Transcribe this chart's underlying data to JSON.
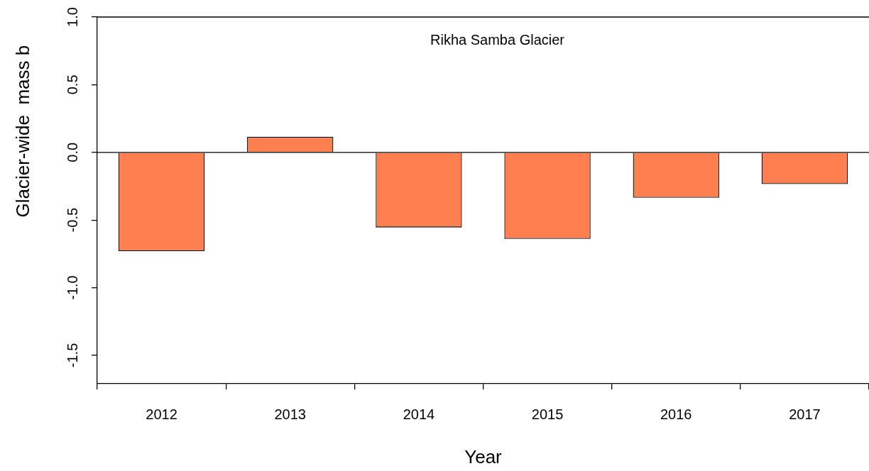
{
  "chart_data": {
    "type": "bar",
    "title": "Rikha Samba Glacier",
    "xlabel": "Year",
    "ylabel": "Glacier-wide  mass b",
    "categories": [
      "2012",
      "2013",
      "2014",
      "2015",
      "2016",
      "2017"
    ],
    "values": [
      -0.73,
      0.115,
      -0.555,
      -0.64,
      -0.335,
      -0.235
    ],
    "color": "#ff7f50",
    "ylim": [
      -1.71,
      1.0
    ],
    "yticks": [
      -1.5,
      {
        "value": -1,
        "label": "-1.0"
      },
      -0.5,
      {
        "value": 0,
        "label": "0.0"
      },
      0.5,
      {
        "value": 1,
        "label": "1.0"
      }
    ],
    "ref_lines": [
      {
        "axis": "y",
        "value": 0,
        "color": "#000000"
      }
    ],
    "grid": false,
    "legend": false
  }
}
